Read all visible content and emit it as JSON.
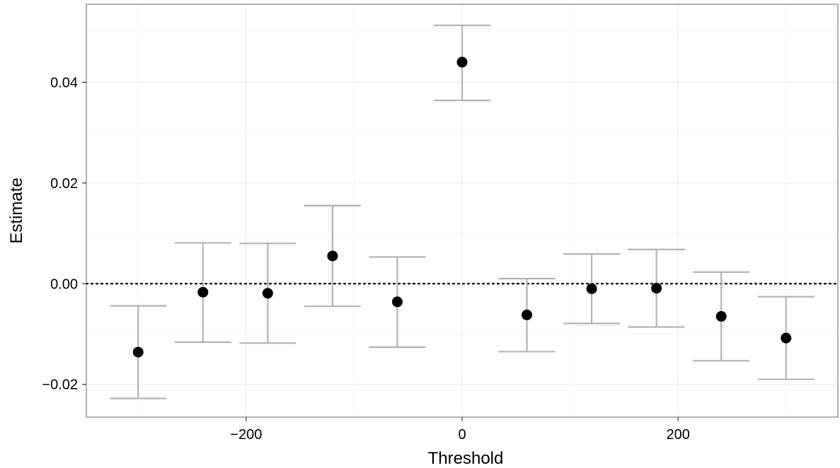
{
  "chart_data": {
    "type": "scatter",
    "title": "",
    "xlabel": "Threshold",
    "ylabel": "Estimate",
    "xlim": [
      -348,
      348
    ],
    "ylim": [
      -0.0265,
      0.0555
    ],
    "x_ticks": [
      -200,
      0,
      200
    ],
    "x_tick_labels": [
      "−200",
      "0",
      "200"
    ],
    "y_ticks": [
      -0.02,
      0.0,
      0.02,
      0.04
    ],
    "y_tick_labels": [
      "−0.02",
      "0.00",
      "0.02",
      "0.04"
    ],
    "grid": true,
    "reference_line": {
      "y": 0,
      "style": "dotted"
    },
    "points": [
      {
        "x": -300,
        "y": -0.0136,
        "lower": -0.0228,
        "upper": -0.0044
      },
      {
        "x": -240,
        "y": -0.0017,
        "lower": -0.0116,
        "upper": 0.0081
      },
      {
        "x": -180,
        "y": -0.0019,
        "lower": -0.0118,
        "upper": 0.008
      },
      {
        "x": -120,
        "y": 0.0055,
        "lower": -0.0045,
        "upper": 0.0155
      },
      {
        "x": -60,
        "y": -0.0036,
        "lower": -0.0126,
        "upper": 0.0053
      },
      {
        "x": 0,
        "y": 0.044,
        "lower": 0.0364,
        "upper": 0.0513
      },
      {
        "x": 60,
        "y": -0.0062,
        "lower": -0.0135,
        "upper": 0.001
      },
      {
        "x": 120,
        "y": -0.001,
        "lower": -0.0079,
        "upper": 0.0059
      },
      {
        "x": 180,
        "y": -0.0009,
        "lower": -0.0086,
        "upper": 0.0068
      },
      {
        "x": 240,
        "y": -0.0065,
        "lower": -0.0153,
        "upper": 0.0023
      },
      {
        "x": 300,
        "y": -0.0108,
        "lower": -0.019,
        "upper": -0.0026
      }
    ],
    "colors": {
      "point": "#000000",
      "errorbar": "#b3b3b3",
      "grid": "#ebebeb",
      "panel_border": "#7f7f7f",
      "axis_text": "#000000"
    }
  }
}
